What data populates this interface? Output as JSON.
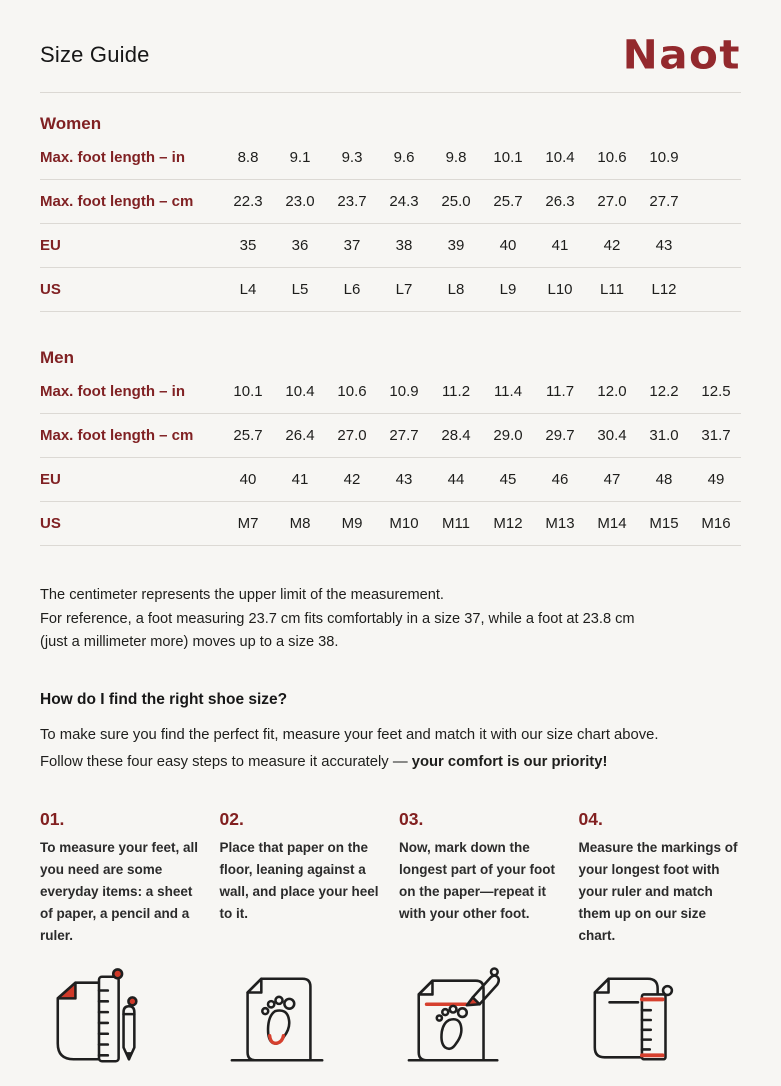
{
  "page": {
    "title": "Size Guide",
    "brand": "Naot"
  },
  "colors": {
    "background": "#f7f6f3",
    "text": "#1e1e1c",
    "heading_red": "#802123",
    "logo_red": "#93292d",
    "icon_accent_red": "#d6402e",
    "divider": "#dcd9d4"
  },
  "tables": [
    {
      "section": "Women",
      "rows": [
        {
          "label": "Max. foot length – in",
          "values": [
            "8.8",
            "9.1",
            "9.3",
            "9.6",
            "9.8",
            "10.1",
            "10.4",
            "10.6",
            "10.9"
          ]
        },
        {
          "label": "Max. foot length – cm",
          "values": [
            "22.3",
            "23.0",
            "23.7",
            "24.3",
            "25.0",
            "25.7",
            "26.3",
            "27.0",
            "27.7"
          ]
        },
        {
          "label": "EU",
          "values": [
            "35",
            "36",
            "37",
            "38",
            "39",
            "40",
            "41",
            "42",
            "43"
          ]
        },
        {
          "label": "US",
          "values": [
            "L4",
            "L5",
            "L6",
            "L7",
            "L8",
            "L9",
            "L10",
            "L11",
            "L12"
          ]
        }
      ]
    },
    {
      "section": "Men",
      "rows": [
        {
          "label": "Max. foot length – in",
          "values": [
            "10.1",
            "10.4",
            "10.6",
            "10.9",
            "11.2",
            "11.4",
            "11.7",
            "12.0",
            "12.2",
            "12.5"
          ]
        },
        {
          "label": "Max. foot length – cm",
          "values": [
            "25.7",
            "26.4",
            "27.0",
            "27.7",
            "28.4",
            "29.0",
            "29.7",
            "30.4",
            "31.0",
            "31.7"
          ]
        },
        {
          "label": "EU",
          "values": [
            "40",
            "41",
            "42",
            "43",
            "44",
            "45",
            "46",
            "47",
            "48",
            "49"
          ]
        },
        {
          "label": "US",
          "values": [
            "M7",
            "M8",
            "M9",
            "M10",
            "M11",
            "M12",
            "M13",
            "M14",
            "M15",
            "M16"
          ]
        }
      ]
    }
  ],
  "note": {
    "line1": "The centimeter represents the upper limit of the measurement.",
    "line2": "For reference, a foot measuring 23.7 cm fits comfortably in a size 37, while a foot at 23.8 cm",
    "line3": "(just a millimeter more) moves up to a size 38."
  },
  "how_to": {
    "heading": "How do I find the right shoe size?",
    "intro_regular": "To make sure you find the perfect fit, measure your feet and match it with our size chart above. Follow these four easy steps to measure it accurately — ",
    "intro_bold": "your comfort is our priority!"
  },
  "steps": [
    {
      "number": "01.",
      "text": "To measure your feet, all you need are some everyday items: a sheet of paper, a pencil and a ruler.",
      "icon": "paper-ruler-pencil-icon"
    },
    {
      "number": "02.",
      "text": "Place that paper on the floor, leaning against a wall, and place your heel to it.",
      "icon": "paper-footprint-heel-icon"
    },
    {
      "number": "03.",
      "text": "Now, mark down the longest part of your foot on the paper—repeat it with your other foot.",
      "icon": "paper-footprint-pencil-mark-icon"
    },
    {
      "number": "04.",
      "text": "Measure the markings of your longest foot with your ruler and match them up on our size chart.",
      "icon": "paper-mark-ruler-icon"
    }
  ]
}
